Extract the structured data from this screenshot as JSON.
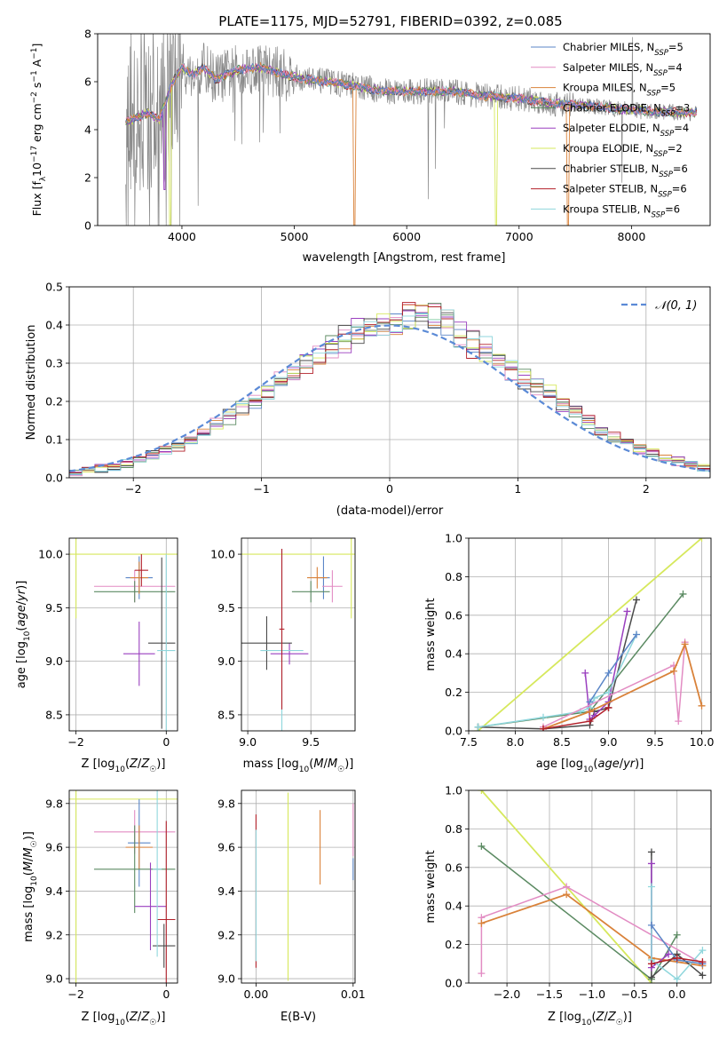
{
  "figure_title": "PLATE=1175, MJD=52791, FIBERID=0392, z=0.085",
  "colors": {
    "Chabrier MILES": "#5b86c7",
    "Salpeter MILES": "#e28cc3",
    "Kroupa MILES": "#d9823a",
    "Chabrier ELODIE": "#5b8a62",
    "Salpeter ELODIE": "#9a3fbf",
    "Kroupa ELODIE": "#d6e85c",
    "Chabrier STELIB": "#4a4a4a",
    "Salpeter STELIB": "#b2202a",
    "Kroupa STELIB": "#8fd6dc",
    "data": "#888888",
    "normal": "#5b8ad6"
  },
  "chart_data": [
    {
      "id": "spectrum",
      "type": "line",
      "title": "PLATE=1175, MJD=52791, FIBERID=0392, z=0.085",
      "xlabel": "wavelength [Angstrom, rest frame]",
      "ylabel": "Flux [f_λ 10^-17 erg cm^-2 s^-1 A^-1]",
      "xlim": [
        3250,
        8700
      ],
      "ylim": [
        0,
        8
      ],
      "xticks": [
        4000,
        5000,
        6000,
        7000,
        8000
      ],
      "yticks": [
        0,
        2,
        4,
        6,
        8
      ],
      "grid": false,
      "legend_position": "upper-right",
      "legend": [
        {
          "label": "Chabrier MILES, N",
          "sub": "SSP",
          "suffix": "=5"
        },
        {
          "label": "Salpeter MILES, N",
          "sub": "SSP",
          "suffix": "=4"
        },
        {
          "label": "Kroupa MILES, N",
          "sub": "SSP",
          "suffix": "=5"
        },
        {
          "label": "Chabrier ELODIE, N",
          "sub": "SSP",
          "suffix": "=3"
        },
        {
          "label": "Salpeter ELODIE, N",
          "sub": "SSP",
          "suffix": "=4"
        },
        {
          "label": "Kroupa ELODIE, N",
          "sub": "SSP",
          "suffix": "=2"
        },
        {
          "label": "Chabrier STELIB, N",
          "sub": "SSP",
          "suffix": "=6"
        },
        {
          "label": "Salpeter STELIB, N",
          "sub": "SSP",
          "suffix": "=6"
        },
        {
          "label": "Kroupa STELIB, N",
          "sub": "SSP",
          "suffix": "=6"
        }
      ],
      "model_continuum": {
        "x": [
          3500,
          3600,
          3700,
          3800,
          3900,
          4000,
          4100,
          4200,
          4300,
          4500,
          4700,
          4900,
          5100,
          5300,
          5500,
          5800,
          6100,
          6400,
          6700,
          7000,
          7300,
          7600,
          7900,
          8200,
          8500
        ],
        "y": [
          4.3,
          4.5,
          4.7,
          4.4,
          5.8,
          6.6,
          6.3,
          6.6,
          6.1,
          6.5,
          6.6,
          6.3,
          6.1,
          6.0,
          5.85,
          5.6,
          5.6,
          5.6,
          5.4,
          5.3,
          5.1,
          5.0,
          4.85,
          4.75,
          4.7
        ]
      }
    },
    {
      "id": "residual-histogram",
      "type": "histogram",
      "xlabel": "(data-model)/error",
      "ylabel": "Normed distribution",
      "xlim": [
        -2.5,
        2.5
      ],
      "ylim": [
        0,
        0.5
      ],
      "xticks": [
        -2,
        -1,
        0,
        1,
        2
      ],
      "yticks": [
        0.0,
        0.1,
        0.2,
        0.3,
        0.4,
        0.5
      ],
      "grid": true,
      "legend_position": "upper-right",
      "legend": "𝒩(0, 1)",
      "bin_width": 0.1,
      "normal_curve": {
        "mean": 0,
        "sigma": 1
      }
    },
    {
      "id": "age-vs-metallicity",
      "type": "errorbar",
      "xlabel": "Z [log10(Z/Z☉)]",
      "ylabel": "age [log10(age/yr)]",
      "xlim": [
        -2.15,
        0.25
      ],
      "ylim": [
        8.35,
        10.15
      ],
      "xticks": [
        -2,
        0
      ],
      "yticks": [
        8.5,
        9.0,
        9.5,
        10.0
      ],
      "grid": true,
      "points": [
        {
          "model": "Kroupa ELODIE",
          "x": -2.0,
          "xerr": 2.3,
          "y": 10.0,
          "yerr": 0.6
        },
        {
          "model": "Chabrier MILES",
          "x": -0.6,
          "xerr": 0.3,
          "y": 9.78,
          "yerr": 0.2
        },
        {
          "model": "Salpeter MILES",
          "x": -0.7,
          "xerr": 0.9,
          "y": 9.7,
          "yerr": 0.15
        },
        {
          "model": "Chabrier ELODIE",
          "x": -0.7,
          "xerr": 0.9,
          "y": 9.65,
          "yerr": 0.1
        },
        {
          "model": "Salpeter ELODIE",
          "x": -0.6,
          "xerr": 0.35,
          "y": 9.07,
          "yerr": 0.3
        },
        {
          "model": "Chabrier STELIB",
          "x": -0.1,
          "xerr": 0.3,
          "y": 9.17,
          "yerr": 0.8
        },
        {
          "model": "Kroupa STELIB",
          "x": 0.0,
          "xerr": 0.2,
          "y": 9.1,
          "yerr": 0.9
        },
        {
          "model": "Kroupa MILES",
          "x": -0.6,
          "xerr": 0.2,
          "y": 9.78,
          "yerr": 0.15
        },
        {
          "model": "Salpeter STELIB",
          "x": -0.55,
          "xerr": 0.15,
          "y": 9.85,
          "yerr": 0.15
        }
      ]
    },
    {
      "id": "age-vs-mass",
      "type": "errorbar",
      "xlabel": "mass [log10(M/M☉)]",
      "ylabel": "",
      "xlim": [
        8.95,
        9.85
      ],
      "ylim": [
        8.35,
        10.15
      ],
      "xticks": [
        9.0,
        9.5
      ],
      "yticks": [
        8.5,
        9.0,
        9.5,
        10.0
      ],
      "grid": true,
      "points": [
        {
          "model": "Kroupa ELODIE",
          "x": 9.82,
          "xerr": 0.9,
          "y": 10.0,
          "yerr": 0.6
        },
        {
          "model": "Chabrier MILES",
          "x": 9.6,
          "xerr": 0.05,
          "y": 9.78,
          "yerr": 0.2
        },
        {
          "model": "Salpeter MILES",
          "x": 9.67,
          "xerr": 0.08,
          "y": 9.7,
          "yerr": 0.15
        },
        {
          "model": "Chabrier ELODIE",
          "x": 9.5,
          "xerr": 0.15,
          "y": 9.65,
          "yerr": 0.1
        },
        {
          "model": "Salpeter ELODIE",
          "x": 9.33,
          "xerr": 0.15,
          "y": 9.07,
          "yerr": 0.1
        },
        {
          "model": "Chabrier STELIB",
          "x": 9.15,
          "xerr": 0.2,
          "y": 9.17,
          "yerr": 0.25
        },
        {
          "model": "Kroupa STELIB",
          "x": 9.27,
          "xerr": 0.17,
          "y": 9.1,
          "yerr": 0.95
        },
        {
          "model": "Kroupa MILES",
          "x": 9.55,
          "xerr": 0.08,
          "y": 9.78,
          "yerr": 0.1
        },
        {
          "model": "Salpeter STELIB",
          "x": 9.27,
          "xerr": 0.02,
          "y": 9.3,
          "yerr": 0.75
        }
      ]
    },
    {
      "id": "massweight-vs-age",
      "type": "line",
      "xlabel": "age  [log10(age/yr)]",
      "ylabel": "mass weight",
      "xlim": [
        7.5,
        10.1
      ],
      "ylim": [
        0.0,
        1.0
      ],
      "xticks": [
        7.5,
        8.0,
        8.5,
        9.0,
        9.5,
        10.0
      ],
      "yticks": [
        0.0,
        0.2,
        0.4,
        0.6,
        0.8,
        1.0
      ],
      "grid": true,
      "series": [
        {
          "model": "Kroupa ELODIE",
          "x": [
            7.6,
            10.0
          ],
          "y": [
            0.0,
            1.0
          ]
        },
        {
          "model": "Chabrier ELODIE",
          "x": [
            7.6,
            8.8,
            9.8
          ],
          "y": [
            0.02,
            0.1,
            0.71
          ]
        },
        {
          "model": "Chabrier STELIB",
          "x": [
            7.6,
            8.3,
            8.8,
            8.85,
            9.0,
            9.3
          ],
          "y": [
            0.02,
            0.01,
            0.03,
            0.1,
            0.12,
            0.68
          ]
        },
        {
          "model": "Salpeter ELODIE",
          "x": [
            8.75,
            8.8,
            8.85,
            9.0,
            9.2
          ],
          "y": [
            0.3,
            0.06,
            0.08,
            0.15,
            0.62
          ]
        },
        {
          "model": "Kroupa STELIB",
          "x": [
            7.6,
            8.3,
            8.7,
            8.8,
            8.85,
            9.0,
            9.3
          ],
          "y": [
            0.02,
            0.07,
            0.1,
            0.12,
            0.17,
            0.2,
            0.5
          ]
        },
        {
          "model": "Chabrier MILES",
          "x": [
            8.8,
            9.0,
            9.3
          ],
          "y": [
            0.15,
            0.3,
            0.5
          ]
        },
        {
          "model": "Salpeter MILES",
          "x": [
            8.3,
            9.7,
            9.75,
            9.82
          ],
          "y": [
            0.02,
            0.34,
            0.05,
            0.46
          ]
        },
        {
          "model": "Kroupa MILES",
          "x": [
            8.3,
            8.8,
            9.7,
            9.82,
            10.0
          ],
          "y": [
            0.01,
            0.1,
            0.31,
            0.45,
            0.13
          ]
        },
        {
          "model": "Salpeter STELIB",
          "x": [
            8.3,
            8.8,
            9.0
          ],
          "y": [
            0.01,
            0.05,
            0.12
          ]
        }
      ]
    },
    {
      "id": "mass-vs-metallicity",
      "type": "errorbar",
      "xlabel": "Z [log10(Z/Z☉)]",
      "ylabel": "mass [log10(M/M☉)]",
      "xlim": [
        -2.15,
        0.25
      ],
      "ylim": [
        8.98,
        9.86
      ],
      "xticks": [
        -2,
        0
      ],
      "yticks": [
        9.0,
        9.2,
        9.4,
        9.6,
        9.8
      ],
      "grid": true,
      "points": [
        {
          "model": "Kroupa ELODIE",
          "x": -2.0,
          "xerr": 2.3,
          "y": 9.82,
          "yerr": 0.85
        },
        {
          "model": "Salpeter MILES",
          "x": -0.7,
          "xerr": 0.9,
          "y": 9.67,
          "yerr": 0.1
        },
        {
          "model": "Chabrier MILES",
          "x": -0.6,
          "xerr": 0.25,
          "y": 9.62,
          "yerr": 0.2
        },
        {
          "model": "Kroupa MILES",
          "x": -0.6,
          "xerr": 0.3,
          "y": 9.6,
          "yerr": 0.1
        },
        {
          "model": "Chabrier ELODIE",
          "x": -0.7,
          "xerr": 0.9,
          "y": 9.5,
          "yerr": 0.2
        },
        {
          "model": "Salpeter ELODIE",
          "x": -0.35,
          "xerr": 0.35,
          "y": 9.33,
          "yerr": 0.2
        },
        {
          "model": "Salpeter STELIB",
          "x": 0.0,
          "xerr": 0.2,
          "y": 9.27,
          "yerr": 0.45
        },
        {
          "model": "Chabrier STELIB",
          "x": -0.05,
          "xerr": 0.25,
          "y": 9.15,
          "yerr": 0.1
        },
        {
          "model": "Kroupa STELIB",
          "x": -0.2,
          "xerr": 0.1,
          "y": 9.5,
          "yerr": 0.4
        }
      ]
    },
    {
      "id": "mass-vs-ebv",
      "type": "errorbar",
      "xlabel": "E(B-V)",
      "ylabel": "",
      "xlim": [
        -0.0015,
        0.0102
      ],
      "ylim": [
        8.98,
        9.86
      ],
      "xticks": [
        0.0,
        0.01
      ],
      "yticks": [
        9.0,
        9.2,
        9.4,
        9.6,
        9.8
      ],
      "grid": true,
      "points": [
        {
          "model": "Salpeter STELIB",
          "x": 0.0,
          "xerr": 0.0,
          "y": 9.4,
          "yerr": 0.35
        },
        {
          "model": "Kroupa STELIB",
          "x": 0.0,
          "xerr": 0.0,
          "y": 9.38,
          "yerr": 0.3
        },
        {
          "model": "Kroupa ELODIE",
          "x": 0.0033,
          "xerr": 0.0,
          "y": 9.42,
          "yerr": 0.43
        },
        {
          "model": "Kroupa MILES",
          "x": 0.0066,
          "xerr": 0.0,
          "y": 9.6,
          "yerr": 0.17
        },
        {
          "model": "Salpeter MILES",
          "x": 0.01,
          "xerr": 0.0,
          "y": 9.68,
          "yerr": 0.12
        },
        {
          "model": "Chabrier MILES",
          "x": 0.01,
          "xerr": 0.0,
          "y": 9.5,
          "yerr": 0.05
        }
      ]
    },
    {
      "id": "massweight-vs-metallicity",
      "type": "line",
      "xlabel": "Z [log10(Z/Z☉)]",
      "ylabel": "mass weight",
      "xlim": [
        -2.45,
        0.4
      ],
      "ylim": [
        0.0,
        1.0
      ],
      "xticks": [
        -2.0,
        -1.5,
        -1.0,
        -0.5,
        0.0
      ],
      "yticks": [
        0.0,
        0.2,
        0.4,
        0.6,
        0.8,
        1.0
      ],
      "grid": true,
      "series": [
        {
          "model": "Kroupa ELODIE",
          "x": [
            -2.3,
            -0.3
          ],
          "y": [
            1.0,
            0.0
          ]
        },
        {
          "model": "Chabrier ELODIE",
          "x": [
            -2.3,
            -0.3,
            0.0
          ],
          "y": [
            0.71,
            0.02,
            0.25
          ]
        },
        {
          "model": "Salpeter MILES",
          "x": [
            -2.3,
            -2.3,
            -1.3,
            0.3
          ],
          "y": [
            0.05,
            0.34,
            0.5,
            0.1
          ]
        },
        {
          "model": "Kroupa MILES",
          "x": [
            -2.3,
            -1.3,
            -0.3,
            0.3
          ],
          "y": [
            0.31,
            0.46,
            0.13,
            0.09
          ]
        },
        {
          "model": "Chabrier STELIB",
          "x": [
            -0.3,
            -0.3,
            0.0,
            0.3
          ],
          "y": [
            0.68,
            0.03,
            0.15,
            0.04
          ]
        },
        {
          "model": "Salpeter ELODIE",
          "x": [
            -0.3,
            -0.3,
            -0.1
          ],
          "y": [
            0.62,
            0.08,
            0.15
          ]
        },
        {
          "model": "Kroupa STELIB",
          "x": [
            -0.3,
            -0.3,
            0.0,
            0.3
          ],
          "y": [
            0.5,
            0.12,
            0.02,
            0.17
          ]
        },
        {
          "model": "Chabrier MILES",
          "x": [
            -0.3,
            0.0,
            0.3
          ],
          "y": [
            0.3,
            0.12,
            0.1
          ]
        },
        {
          "model": "Salpeter STELIB",
          "x": [
            -0.3,
            0.0,
            0.3
          ],
          "y": [
            0.1,
            0.13,
            0.11
          ]
        }
      ]
    }
  ]
}
